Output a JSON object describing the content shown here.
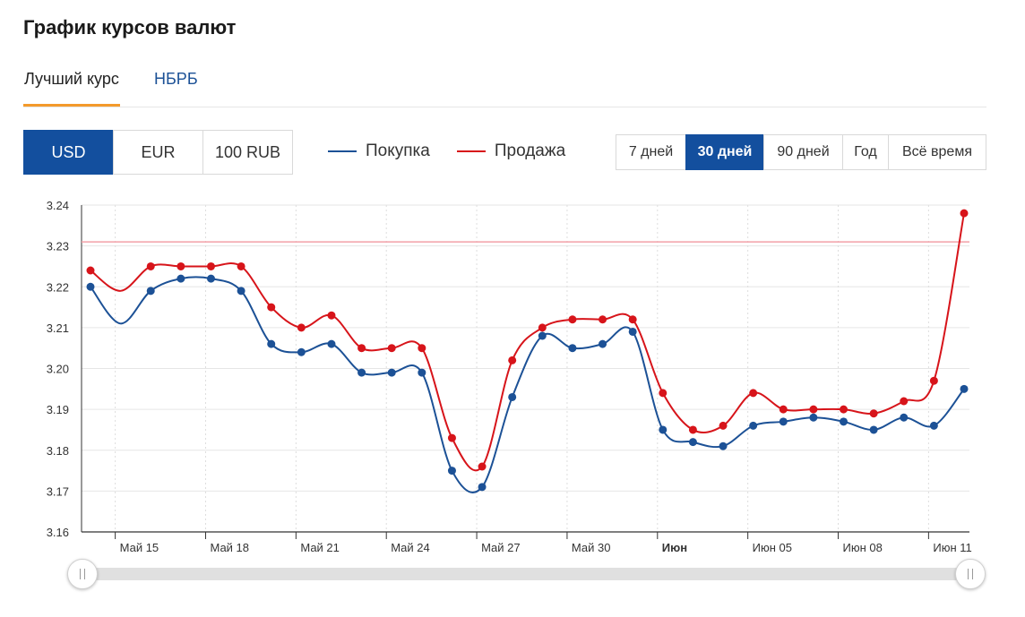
{
  "page": {
    "title": "График курсов валют"
  },
  "tabs": [
    {
      "label": "Лучший курс",
      "active": true
    },
    {
      "label": "НБРБ",
      "active": false
    }
  ],
  "currencies": [
    {
      "label": "USD",
      "active": true
    },
    {
      "label": "EUR",
      "active": false
    },
    {
      "label": "100 RUB",
      "active": false
    }
  ],
  "legend": {
    "buy": "Покупка",
    "sell": "Продажа"
  },
  "periods": [
    {
      "label": "7 дней",
      "active": false
    },
    {
      "label": "30 дней",
      "active": true
    },
    {
      "label": "90 дней",
      "active": false
    },
    {
      "label": "Год",
      "active": false
    },
    {
      "label": "Всё время",
      "active": false
    }
  ],
  "colors": {
    "buy": "#1c5196",
    "sell": "#d7141a",
    "accent": "#134f9e",
    "tab_underline": "#f39a2b",
    "reference_line": "#f2a0a8"
  },
  "chart_data": {
    "type": "line",
    "ylim": [
      3.16,
      3.24
    ],
    "yticks": [
      "3.16",
      "3.17",
      "3.18",
      "3.19",
      "3.20",
      "3.21",
      "3.22",
      "3.23",
      "3.24"
    ],
    "x_dates": [
      "2024-05-14",
      "2024-05-15",
      "2024-05-16",
      "2024-05-17",
      "2024-05-18",
      "2024-05-19",
      "2024-05-20",
      "2024-05-21",
      "2024-05-22",
      "2024-05-23",
      "2024-05-24",
      "2024-05-25",
      "2024-05-26",
      "2024-05-27",
      "2024-05-28",
      "2024-05-29",
      "2024-05-30",
      "2024-05-31",
      "2024-06-01",
      "2024-06-02",
      "2024-06-03",
      "2024-06-04",
      "2024-06-05",
      "2024-06-06",
      "2024-06-07",
      "2024-06-08",
      "2024-06-09",
      "2024-06-10",
      "2024-06-11",
      "2024-06-12"
    ],
    "x_ticks": [
      {
        "date": "2024-05-15",
        "label": "Май 15",
        "bold": false
      },
      {
        "date": "2024-05-18",
        "label": "Май 18",
        "bold": false
      },
      {
        "date": "2024-05-21",
        "label": "Май 21",
        "bold": false
      },
      {
        "date": "2024-05-24",
        "label": "Май 24",
        "bold": false
      },
      {
        "date": "2024-05-27",
        "label": "Май 27",
        "bold": false
      },
      {
        "date": "2024-05-30",
        "label": "Май 30",
        "bold": false
      },
      {
        "date": "2024-06-02",
        "label": "Июн",
        "bold": true
      },
      {
        "date": "2024-06-05",
        "label": "Июн 05",
        "bold": false
      },
      {
        "date": "2024-06-08",
        "label": "Июн 08",
        "bold": false
      },
      {
        "date": "2024-06-11",
        "label": "Июн 11",
        "bold": false
      }
    ],
    "reference_line": 3.231,
    "grid": true,
    "series": [
      {
        "name": "Покупка",
        "key": "buy",
        "values": [
          3.22,
          3.211,
          3.219,
          3.222,
          3.222,
          3.219,
          3.206,
          3.204,
          3.206,
          3.199,
          3.199,
          3.199,
          3.175,
          3.171,
          3.193,
          3.208,
          3.205,
          3.206,
          3.209,
          3.185,
          3.182,
          3.181,
          3.186,
          3.187,
          3.188,
          3.187,
          3.185,
          3.188,
          3.186,
          3.195
        ]
      },
      {
        "name": "Продажа",
        "key": "sell",
        "values": [
          3.224,
          3.219,
          3.225,
          3.225,
          3.225,
          3.225,
          3.215,
          3.21,
          3.213,
          3.205,
          3.205,
          3.205,
          3.183,
          3.176,
          3.202,
          3.21,
          3.212,
          3.212,
          3.212,
          3.194,
          3.185,
          3.186,
          3.194,
          3.19,
          3.19,
          3.19,
          3.189,
          3.192,
          3.197,
          3.238
        ]
      }
    ]
  }
}
